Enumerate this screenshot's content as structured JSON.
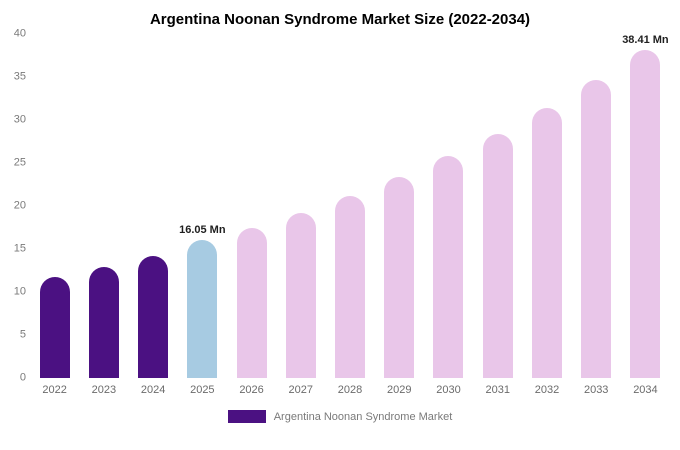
{
  "title": "Argentina Noonan Syndrome Market Size (2022-2034)",
  "legend": {
    "label": "Argentina Noonan Syndrome Market",
    "swatch_color": "#4b1182"
  },
  "colors": {
    "historical": "#4b1182",
    "current_year": "#a7cbe2",
    "forecast": "#e9c6e9",
    "background": "#ffffff"
  },
  "chart_data": {
    "type": "bar",
    "title": "Argentina Noonan Syndrome Market Size (2022-2034)",
    "categories": [
      "2022",
      "2023",
      "2024",
      "2025",
      "2026",
      "2027",
      "2028",
      "2029",
      "2030",
      "2031",
      "2032",
      "2033",
      "2034"
    ],
    "values": [
      11.7,
      12.9,
      14.2,
      16.05,
      17.5,
      19.2,
      21.2,
      23.4,
      25.8,
      28.4,
      31.4,
      34.7,
      38.41
    ],
    "bar_colors": [
      "#4b1182",
      "#4b1182",
      "#4b1182",
      "#a7cbe2",
      "#e9c6e9",
      "#e9c6e9",
      "#e9c6e9",
      "#e9c6e9",
      "#e9c6e9",
      "#e9c6e9",
      "#e9c6e9",
      "#e9c6e9",
      "#e9c6e9"
    ],
    "unit": "Mn",
    "xlabel": "",
    "ylabel": "",
    "ylim": [
      0,
      40
    ],
    "yticks": [
      0,
      5,
      10,
      15,
      20,
      25,
      30,
      35,
      40
    ],
    "grid": false,
    "legend_position": "bottom",
    "annotations": [
      {
        "category": "2025",
        "text": "16.05 Mn"
      },
      {
        "category": "2034",
        "text": "38.41 Mn"
      }
    ]
  }
}
